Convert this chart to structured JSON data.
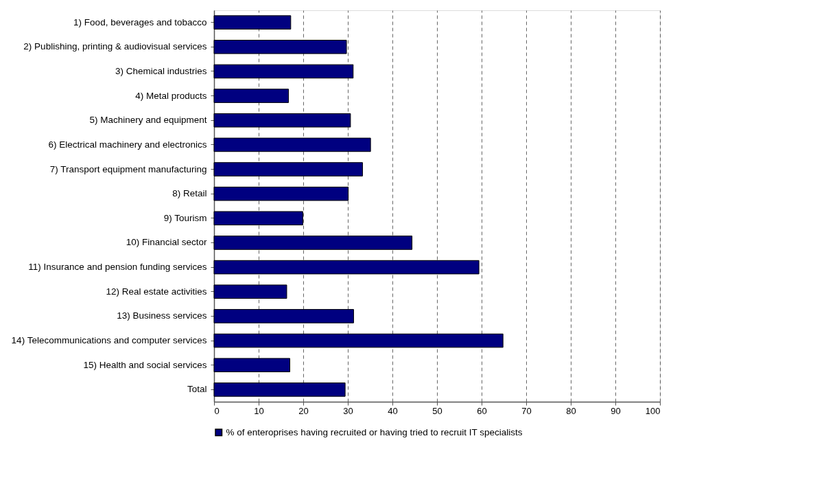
{
  "chart_data": {
    "type": "bar",
    "orientation": "horizontal",
    "categories": [
      "1) Food, beverages and tobacco",
      "2) Publishing, printing & audiovisual services",
      "3) Chemical industries",
      "4) Metal products",
      "5) Machinery and equipment",
      "6) Electrical machinery and electronics",
      "7) Transport equipment manufacturing",
      "8) Retail",
      "9) Tourism",
      "10) Financial sector",
      "11) Insurance and pension funding services",
      "12) Real estate activities",
      "13) Business services",
      "14) Telecommunications and computer services",
      "15) Health and social services ",
      "Total"
    ],
    "series": [
      {
        "name": "% of enteroprises having recruited or having tried to recruit IT specialists",
        "color": "#000080",
        "values": [
          17.2,
          29.7,
          31.2,
          16.7,
          30.6,
          35.1,
          33.3,
          30.1,
          19.9,
          44.4,
          59.4,
          16.3,
          31.3,
          64.8,
          17.0,
          29.4
        ]
      }
    ],
    "xlim": [
      0,
      100
    ],
    "xticks": [
      0,
      10,
      20,
      30,
      40,
      50,
      60,
      70,
      80,
      90,
      100
    ],
    "grid": "x",
    "line_style": "dashed",
    "legend": "bottom"
  }
}
